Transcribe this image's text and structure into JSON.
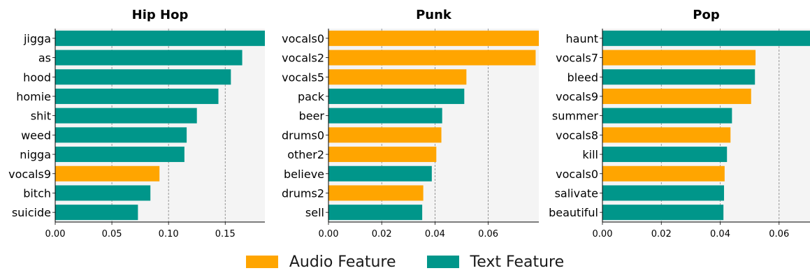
{
  "colors": {
    "audio": "#FFA500",
    "text": "#00968A",
    "plot_background": "#F4F4F4",
    "grid": "#7F7F7F"
  },
  "legend": {
    "placement": "bottom-center",
    "items": [
      {
        "label": "Audio Feature",
        "color": "#FFA500"
      },
      {
        "label": "Text Feature",
        "color": "#00968A"
      }
    ]
  },
  "chart_data": [
    {
      "type": "bar",
      "orientation": "horizontal",
      "title": "Hip Hop",
      "xlabel": "",
      "ylabel": "",
      "xlim": [
        0,
        0.185
      ],
      "xticks": [
        "0.00",
        "0.05",
        "0.10",
        "0.15"
      ],
      "grid": "vertical-dashed",
      "categories": [
        "jigga",
        "as",
        "hood",
        "homie",
        "shit",
        "weed",
        "nigga",
        "vocals9",
        "bitch",
        "suicide"
      ],
      "values": [
        0.185,
        0.165,
        0.155,
        0.144,
        0.125,
        0.116,
        0.114,
        0.092,
        0.084,
        0.073
      ],
      "feature_type": [
        "text",
        "text",
        "text",
        "text",
        "text",
        "text",
        "text",
        "audio",
        "text",
        "text"
      ]
    },
    {
      "type": "bar",
      "orientation": "horizontal",
      "title": "Punk",
      "xlabel": "",
      "ylabel": "",
      "xlim": [
        0,
        0.079
      ],
      "xticks": [
        "0.00",
        "0.02",
        "0.04",
        "0.06"
      ],
      "grid": "vertical-dashed",
      "categories": [
        "vocals0",
        "vocals2",
        "vocals5",
        "pack",
        "beer",
        "drums0",
        "other2",
        "believe",
        "drums2",
        "sell"
      ],
      "values": [
        0.079,
        0.0778,
        0.0518,
        0.051,
        0.0427,
        0.0424,
        0.0405,
        0.0388,
        0.0356,
        0.0352
      ],
      "feature_type": [
        "audio",
        "audio",
        "audio",
        "text",
        "text",
        "audio",
        "audio",
        "text",
        "audio",
        "text"
      ]
    },
    {
      "type": "bar",
      "orientation": "horizontal",
      "title": "Pop",
      "xlabel": "",
      "ylabel": "",
      "xlim": [
        0,
        0.0705
      ],
      "xticks": [
        "0.00",
        "0.02",
        "0.04",
        "0.06"
      ],
      "grid": "vertical-dashed",
      "categories": [
        "haunt",
        "vocals7",
        "bleed",
        "vocals9",
        "summer",
        "vocals8",
        "kill",
        "vocals0",
        "salivate",
        "beautiful"
      ],
      "values": [
        0.0705,
        0.052,
        0.0518,
        0.0505,
        0.044,
        0.0435,
        0.0423,
        0.0415,
        0.0413,
        0.0411
      ],
      "feature_type": [
        "text",
        "audio",
        "text",
        "audio",
        "text",
        "audio",
        "text",
        "audio",
        "text",
        "text"
      ]
    }
  ]
}
